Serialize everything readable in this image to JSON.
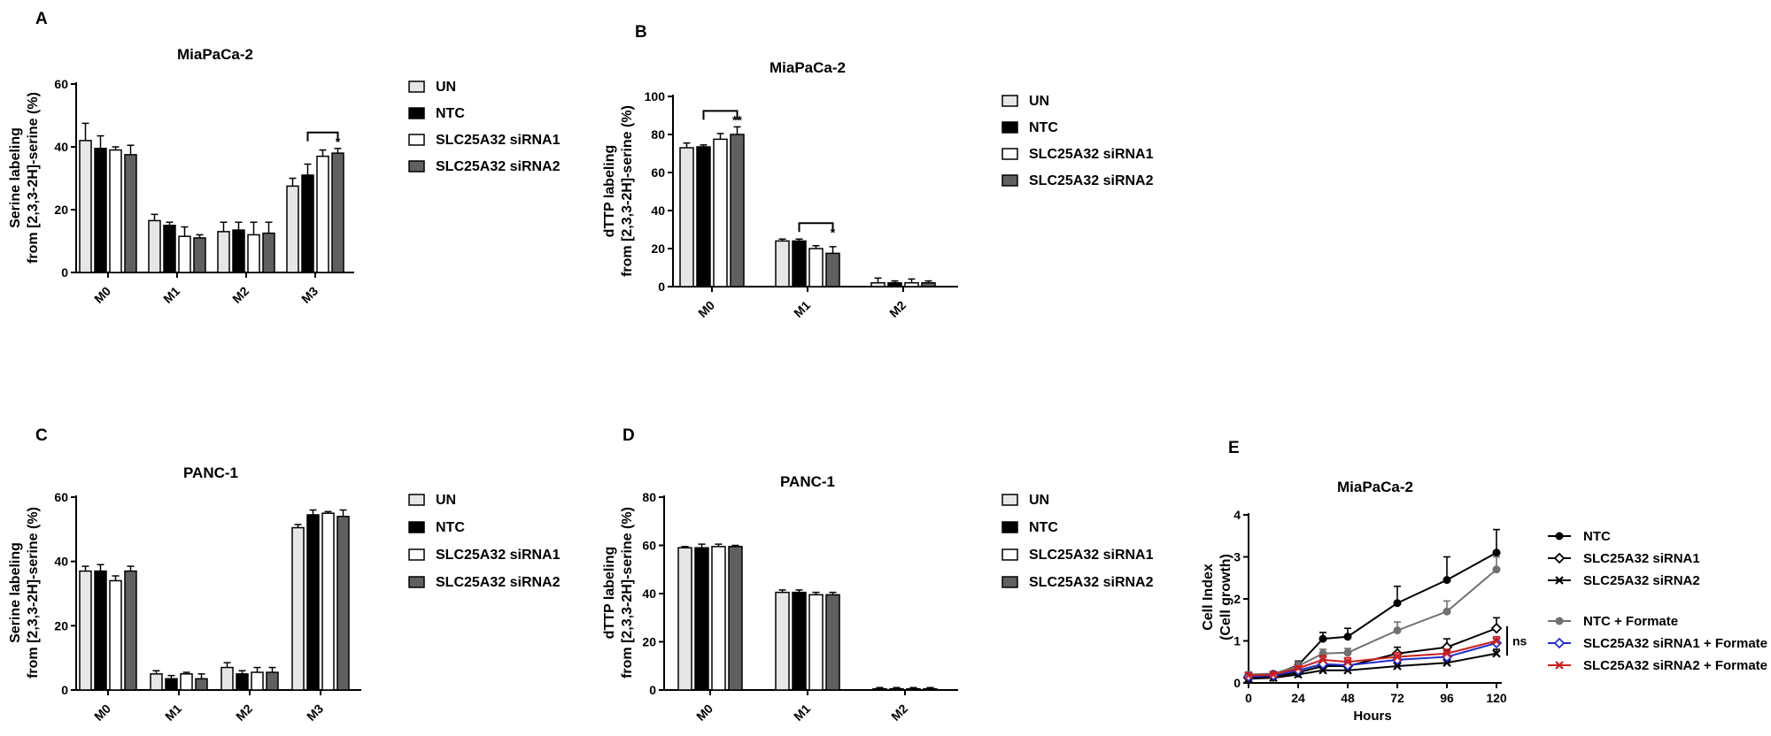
{
  "chart_data": [
    {
      "panel": "A",
      "type": "bar",
      "title": "MiaPaCa-2",
      "ylabel": [
        "Serine labeling",
        "from [2,3,3-2H]-serine (%)"
      ],
      "ylim": [
        0,
        60
      ],
      "yticks": [
        0,
        20,
        40,
        60
      ],
      "categories": [
        "M0",
        "M1",
        "M2",
        "M3"
      ],
      "series": [
        {
          "name": "UN",
          "fill": "#e6e6e6",
          "values": [
            42,
            16.5,
            13,
            27.5
          ],
          "errors": [
            5.5,
            2,
            3,
            2.5
          ]
        },
        {
          "name": "NTC",
          "fill": "#000000",
          "values": [
            39.5,
            15,
            13.5,
            31
          ],
          "errors": [
            4,
            1,
            2.5,
            3.5
          ]
        },
        {
          "name": "SLC25A32 siRNA1",
          "fill": "#ffffff",
          "values": [
            39,
            11.5,
            12,
            37
          ],
          "errors": [
            1,
            3,
            4,
            2
          ]
        },
        {
          "name": "SLC25A32 siRNA2",
          "fill": "#606060",
          "values": [
            37.5,
            11,
            12.5,
            38
          ],
          "errors": [
            3,
            1,
            3.5,
            1.5
          ]
        }
      ],
      "annotations": [
        {
          "category": "M3",
          "from": 1,
          "to": 3,
          "text": "*"
        }
      ]
    },
    {
      "panel": "B",
      "type": "bar",
      "title": "MiaPaCa-2",
      "ylabel": [
        "dTTP labeling",
        "from [2,3,3-2H]-serine (%)"
      ],
      "ylim": [
        0,
        100
      ],
      "yticks": [
        0,
        20,
        40,
        60,
        80,
        100
      ],
      "categories": [
        "M0",
        "M1",
        "M2"
      ],
      "series": [
        {
          "name": "UN",
          "fill": "#e6e6e6",
          "values": [
            73,
            24,
            2
          ],
          "errors": [
            2.5,
            1,
            2.5
          ]
        },
        {
          "name": "NTC",
          "fill": "#000000",
          "values": [
            73.5,
            24,
            2
          ],
          "errors": [
            1,
            1,
            1
          ]
        },
        {
          "name": "SLC25A32 siRNA1",
          "fill": "#ffffff",
          "values": [
            77.5,
            20,
            2
          ],
          "errors": [
            3,
            1.5,
            2
          ]
        },
        {
          "name": "SLC25A32 siRNA2",
          "fill": "#606060",
          "values": [
            80,
            17.5,
            2
          ],
          "errors": [
            4,
            3.5,
            1
          ]
        }
      ],
      "annotations": [
        {
          "category": "M0",
          "from": 1,
          "to": 3,
          "text": "**"
        },
        {
          "category": "M1",
          "from": 1,
          "to": 3,
          "text": "*"
        }
      ]
    },
    {
      "panel": "C",
      "type": "bar",
      "title": "PANC-1",
      "ylabel": [
        "Serine labeling",
        "from [2,3,3-2H]-serine (%)"
      ],
      "ylim": [
        0,
        60
      ],
      "yticks": [
        0,
        20,
        40,
        60
      ],
      "categories": [
        "M0",
        "M1",
        "M2",
        "M3"
      ],
      "series": [
        {
          "name": "UN",
          "fill": "#e6e6e6",
          "values": [
            37,
            5,
            7,
            50.5
          ],
          "errors": [
            1.5,
            1,
            1.5,
            1
          ]
        },
        {
          "name": "NTC",
          "fill": "#000000",
          "values": [
            37,
            3.5,
            5,
            54.5
          ],
          "errors": [
            2,
            1,
            1,
            1.5
          ]
        },
        {
          "name": "SLC25A32 siRNA1",
          "fill": "#ffffff",
          "values": [
            34,
            5,
            5.5,
            55
          ],
          "errors": [
            1.5,
            0.5,
            1.5,
            0.5
          ]
        },
        {
          "name": "SLC25A32 siRNA2",
          "fill": "#606060",
          "values": [
            37,
            3.5,
            5.5,
            54
          ],
          "errors": [
            1.5,
            1.5,
            1.5,
            2
          ]
        }
      ],
      "annotations": []
    },
    {
      "panel": "D",
      "type": "bar",
      "title": "PANC-1",
      "ylabel": [
        "dTTP labeling",
        "from [2,3,3-2H]-serine (%)"
      ],
      "ylim": [
        0,
        80
      ],
      "yticks": [
        0,
        20,
        40,
        60,
        80
      ],
      "categories": [
        "M0",
        "M1",
        "M2"
      ],
      "series": [
        {
          "name": "UN",
          "fill": "#e6e6e6",
          "values": [
            59,
            40.5,
            0.5
          ],
          "errors": [
            0.5,
            1,
            0.5
          ]
        },
        {
          "name": "NTC",
          "fill": "#000000",
          "values": [
            59,
            40.5,
            0.5
          ],
          "errors": [
            1.5,
            1,
            0.5
          ]
        },
        {
          "name": "SLC25A32 siRNA1",
          "fill": "#ffffff",
          "values": [
            59.5,
            39.5,
            0.5
          ],
          "errors": [
            1,
            1,
            0.5
          ]
        },
        {
          "name": "SLC25A32 siRNA2",
          "fill": "#606060",
          "values": [
            59.5,
            39.5,
            0.5
          ],
          "errors": [
            0.5,
            1,
            0.5
          ]
        }
      ],
      "annotations": []
    },
    {
      "panel": "E",
      "type": "line",
      "title": "MiaPaCa-2",
      "xlabel": "Hours",
      "ylabel": [
        "Cell Index",
        "(Cell growth)"
      ],
      "xlim": [
        0,
        120
      ],
      "ylim": [
        0,
        4
      ],
      "xticks": [
        0,
        24,
        48,
        72,
        96,
        120
      ],
      "yticks": [
        0,
        1,
        2,
        3,
        4
      ],
      "x": [
        0,
        12,
        24,
        36,
        48,
        72,
        96,
        120
      ],
      "series": [
        {
          "name": "NTC",
          "color": "#000000",
          "marker": "dot",
          "values": [
            0.15,
            0.2,
            0.42,
            1.05,
            1.1,
            1.9,
            2.45,
            3.1
          ],
          "errors": [
            0.05,
            0.05,
            0.1,
            0.15,
            0.2,
            0.4,
            0.55,
            0.55
          ]
        },
        {
          "name": "SLC25A32 siRNA1",
          "color": "#000000",
          "marker": "diamond",
          "values": [
            0.12,
            0.15,
            0.25,
            0.4,
            0.4,
            0.7,
            0.85,
            1.3
          ],
          "errors": [
            0.05,
            0.05,
            0.05,
            0.1,
            0.1,
            0.15,
            0.2,
            0.25
          ]
        },
        {
          "name": "SLC25A32 siRNA2",
          "color": "#000000",
          "marker": "x",
          "values": [
            0.1,
            0.12,
            0.2,
            0.3,
            0.3,
            0.4,
            0.48,
            0.7
          ],
          "errors": [
            0.05,
            0.05,
            0.05,
            0.05,
            0.05,
            0.1,
            0.1,
            0.1
          ]
        },
        {
          "name": "NTC + Formate",
          "color": "#707070",
          "marker": "dot",
          "values": [
            0.2,
            0.22,
            0.4,
            0.7,
            0.72,
            1.25,
            1.7,
            2.7
          ],
          "errors": [
            0.05,
            0.05,
            0.1,
            0.1,
            0.1,
            0.2,
            0.25,
            0.3
          ]
        },
        {
          "name": "SLC25A32 siRNA1 + Formate",
          "color": "#1f2fcc",
          "marker": "diamond",
          "values": [
            0.15,
            0.18,
            0.3,
            0.45,
            0.42,
            0.55,
            0.62,
            0.95
          ],
          "errors": [
            0.05,
            0.05,
            0.05,
            0.1,
            0.1,
            0.1,
            0.1,
            0.1
          ]
        },
        {
          "name": "SLC25A32 siRNA2 + Formate",
          "color": "#cc1f1f",
          "marker": "x",
          "values": [
            0.18,
            0.2,
            0.35,
            0.55,
            0.5,
            0.62,
            0.7,
            1.0
          ],
          "errors": [
            0.05,
            0.05,
            0.05,
            0.1,
            0.1,
            0.1,
            0.1,
            0.1
          ]
        }
      ],
      "annotations": [
        {
          "text": "ns"
        }
      ]
    }
  ]
}
